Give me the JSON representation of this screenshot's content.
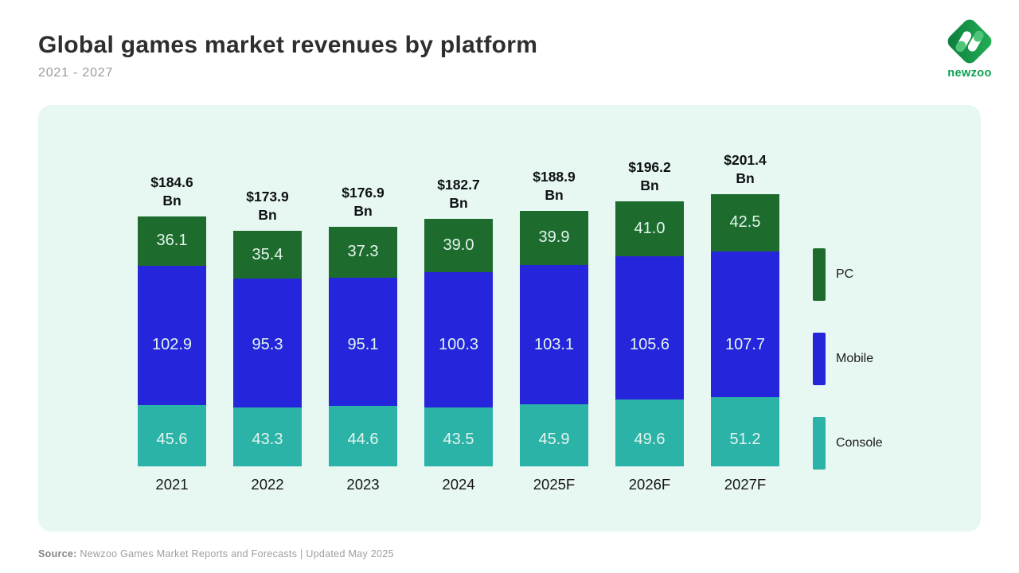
{
  "header": {
    "title": "Global games market revenues by platform",
    "subtitle": "2021 - 2027",
    "logo_text": "newzoo"
  },
  "footer": {
    "source_label": "Source:",
    "source_text": "Newzoo Games Market Reports and Forecasts | Updated May 2025"
  },
  "colors": {
    "pc": "#1d6c2e",
    "mobile": "#2526db",
    "console": "#2bb3a8",
    "panel_bg": "#e7f7f2",
    "segment_label": "#e3f4ed",
    "logo_green": "#0aa14e"
  },
  "legend": {
    "items": [
      {
        "label": "PC",
        "color_key": "pc"
      },
      {
        "label": "Mobile",
        "color_key": "mobile"
      },
      {
        "label": "Console",
        "color_key": "console"
      }
    ]
  },
  "chart_data": {
    "type": "bar",
    "stacked": true,
    "title": "Global games market revenues by platform",
    "subtitle": "2021 - 2027",
    "categories": [
      "2021",
      "2022",
      "2023",
      "2024",
      "2025F",
      "2026F",
      "2027F"
    ],
    "currency": "$",
    "unit": "Bn",
    "totals": [
      "184.6",
      "173.9",
      "176.9",
      "182.7",
      "188.9",
      "196.2",
      "201.4"
    ],
    "series": [
      {
        "name": "Console",
        "color_key": "console",
        "values": [
          45.6,
          43.3,
          44.6,
          43.5,
          45.9,
          49.6,
          51.2
        ]
      },
      {
        "name": "Mobile",
        "color_key": "mobile",
        "values": [
          102.9,
          95.3,
          95.1,
          100.3,
          103.1,
          105.6,
          107.7
        ]
      },
      {
        "name": "PC",
        "color_key": "pc",
        "values": [
          36.1,
          35.4,
          37.3,
          39.0,
          39.9,
          41.0,
          42.5
        ]
      }
    ],
    "legend_position": "right",
    "grid": false,
    "axes_visible": false
  }
}
